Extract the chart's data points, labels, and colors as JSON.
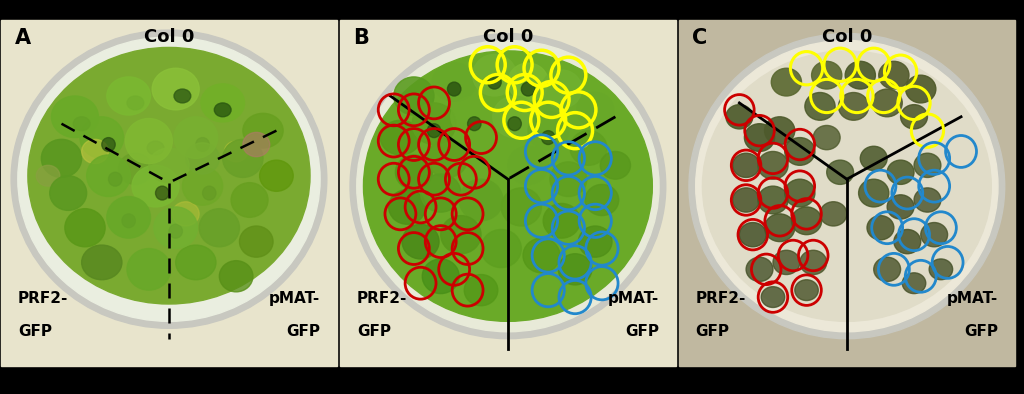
{
  "fig_width": 10.24,
  "fig_height": 3.94,
  "dpi": 100,
  "background_color": "#000000",
  "panel_bg_color": "#e8e4cc",
  "panel_bg_color_C": "#c8c0a8",
  "plate_rim_color": "#d0ccc0",
  "plate_fill_A": "#e8ead8",
  "plate_fill_BC": "#e8e8d8",
  "plant_green_main": "#7aaa30",
  "plant_green_dark": "#3a6818",
  "plant_green_mid": "#5a8c20",
  "plant_green_light": "#a0c840",
  "plant_green_yellow": "#c8c820",
  "plant_brown": "#886830",
  "circle_yellow": "#ffff00",
  "circle_red": "#cc0000",
  "circle_blue": "#2288cc",
  "line_color": "#000000",
  "text_color": "#000000",
  "label_fontsize": 11,
  "title_fontsize": 13,
  "panel_label_fontsize": 15,
  "panel_titles": [
    "Col 0",
    "Col 0",
    "Col 0"
  ],
  "panel_labels": [
    "A",
    "B",
    "C"
  ]
}
